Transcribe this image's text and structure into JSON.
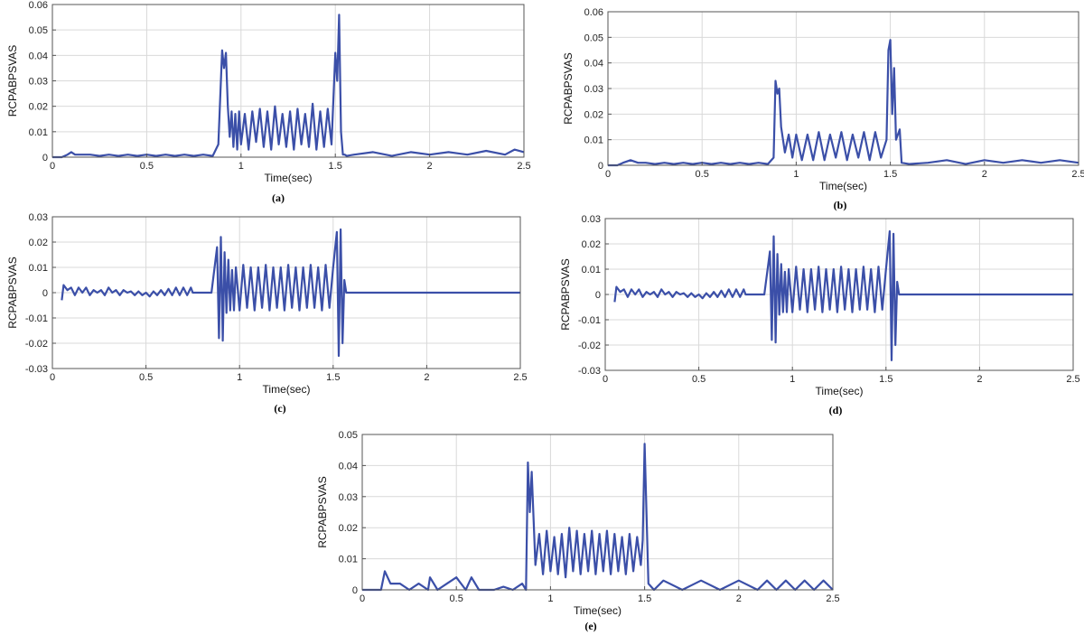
{
  "colors": {
    "line": "#3b4fa8",
    "grid": "#d9d9d9",
    "axis": "#555555"
  },
  "chart_data": [
    {
      "type": "line",
      "caption": "(a)",
      "xlabel": "Time(sec)",
      "ylabel": "RCPABPSVAS",
      "xlim": [
        0,
        2.5
      ],
      "ylim": [
        0,
        0.06
      ],
      "xticks": [
        0,
        0.5,
        1,
        1.5,
        2,
        2.5
      ],
      "xtick_labels": [
        "0",
        "0.5",
        "1",
        "1.5",
        "2",
        "2.5"
      ],
      "yticks": [
        0,
        0.01,
        0.02,
        0.03,
        0.04,
        0.05,
        0.06
      ],
      "ytick_labels": [
        "0",
        "0.01",
        "0.02",
        "0.03",
        "0.04",
        "0.05",
        "0.06"
      ],
      "grid": true,
      "series": [
        {
          "x": [
            0,
            0.05,
            0.08,
            0.1,
            0.12,
            0.15,
            0.2,
            0.25,
            0.3,
            0.35,
            0.4,
            0.45,
            0.5,
            0.55,
            0.6,
            0.65,
            0.7,
            0.75,
            0.8,
            0.85,
            0.88,
            0.9,
            0.91,
            0.92,
            0.93,
            0.94,
            0.95,
            0.96,
            0.97,
            0.98,
            0.99,
            1.0,
            1.02,
            1.04,
            1.06,
            1.08,
            1.1,
            1.12,
            1.14,
            1.16,
            1.18,
            1.2,
            1.22,
            1.24,
            1.26,
            1.28,
            1.3,
            1.32,
            1.34,
            1.36,
            1.38,
            1.4,
            1.42,
            1.44,
            1.46,
            1.48,
            1.5,
            1.51,
            1.52,
            1.53,
            1.54,
            1.55,
            1.56,
            1.6,
            1.7,
            1.8,
            1.9,
            2.0,
            2.1,
            2.2,
            2.3,
            2.4,
            2.45,
            2.5
          ],
          "y": [
            0,
            0,
            0.001,
            0.002,
            0.001,
            0.001,
            0.001,
            0.0005,
            0.001,
            0.0005,
            0.001,
            0.0005,
            0.001,
            0.0005,
            0.001,
            0.0005,
            0.001,
            0.0005,
            0.001,
            0.0005,
            0.005,
            0.042,
            0.035,
            0.041,
            0.02,
            0.008,
            0.018,
            0.004,
            0.017,
            0.003,
            0.018,
            0.005,
            0.017,
            0.003,
            0.018,
            0.006,
            0.019,
            0.004,
            0.018,
            0.003,
            0.02,
            0.005,
            0.017,
            0.004,
            0.018,
            0.003,
            0.019,
            0.005,
            0.017,
            0.004,
            0.021,
            0.003,
            0.018,
            0.004,
            0.019,
            0.005,
            0.041,
            0.03,
            0.056,
            0.01,
            0.001,
            0.001,
            0.0005,
            0.001,
            0.002,
            0.0005,
            0.002,
            0.001,
            0.002,
            0.001,
            0.0025,
            0.001,
            0.003,
            0.002
          ]
        }
      ]
    },
    {
      "type": "line",
      "caption": "(b)",
      "xlabel": "Time(sec)",
      "ylabel": "RCPABPSVAS",
      "xlim": [
        0,
        2.5
      ],
      "ylim": [
        0,
        0.06
      ],
      "xticks": [
        0,
        0.5,
        1,
        1.5,
        2,
        2.5
      ],
      "xtick_labels": [
        "0",
        "0.5",
        "1",
        "1.5",
        "2",
        "2.5"
      ],
      "yticks": [
        0,
        0.01,
        0.02,
        0.03,
        0.04,
        0.05,
        0.06
      ],
      "ytick_labels": [
        "0",
        "0.01",
        "0.02",
        "0.03",
        "0.04",
        "0.05",
        "0.06"
      ],
      "grid": true,
      "series": [
        {
          "x": [
            0,
            0.05,
            0.08,
            0.12,
            0.16,
            0.2,
            0.25,
            0.3,
            0.35,
            0.4,
            0.45,
            0.5,
            0.55,
            0.6,
            0.65,
            0.7,
            0.75,
            0.8,
            0.85,
            0.88,
            0.89,
            0.9,
            0.91,
            0.92,
            0.94,
            0.96,
            0.98,
            1.0,
            1.03,
            1.06,
            1.09,
            1.12,
            1.15,
            1.18,
            1.21,
            1.24,
            1.27,
            1.3,
            1.33,
            1.36,
            1.39,
            1.42,
            1.45,
            1.48,
            1.49,
            1.5,
            1.51,
            1.52,
            1.53,
            1.55,
            1.56,
            1.6,
            1.7,
            1.8,
            1.9,
            2.0,
            2.1,
            2.2,
            2.3,
            2.4,
            2.5
          ],
          "y": [
            0,
            0,
            0.001,
            0.002,
            0.001,
            0.001,
            0.0005,
            0.001,
            0.0005,
            0.001,
            0.0005,
            0.001,
            0.0005,
            0.001,
            0.0005,
            0.001,
            0.0005,
            0.001,
            0.0005,
            0.003,
            0.033,
            0.028,
            0.03,
            0.015,
            0.005,
            0.012,
            0.003,
            0.012,
            0.002,
            0.012,
            0.002,
            0.013,
            0.002,
            0.012,
            0.003,
            0.013,
            0.002,
            0.012,
            0.003,
            0.013,
            0.002,
            0.013,
            0.003,
            0.01,
            0.045,
            0.049,
            0.02,
            0.038,
            0.01,
            0.014,
            0.001,
            0.0005,
            0.001,
            0.002,
            0.0005,
            0.002,
            0.001,
            0.002,
            0.001,
            0.002,
            0.001
          ]
        }
      ]
    },
    {
      "type": "line",
      "caption": "(c)",
      "xlabel": "Time(sec)",
      "ylabel": "RCPABPSVAS",
      "xlim": [
        0,
        2.5
      ],
      "ylim": [
        -0.03,
        0.03
      ],
      "xticks": [
        0,
        0.5,
        1,
        1.5,
        2,
        2.5
      ],
      "xtick_labels": [
        "0",
        "0.5",
        "1",
        "1.5",
        "2",
        "2.5"
      ],
      "yticks": [
        -0.03,
        -0.02,
        -0.01,
        0,
        0.01,
        0.02,
        0.03
      ],
      "ytick_labels": [
        "-0.03",
        "-0.02",
        "-0.01",
        "0",
        "0.01",
        "0.02",
        "0.03"
      ],
      "grid": true,
      "series": [
        {
          "x": [
            0.05,
            0.06,
            0.08,
            0.1,
            0.12,
            0.14,
            0.16,
            0.18,
            0.2,
            0.22,
            0.24,
            0.26,
            0.28,
            0.3,
            0.32,
            0.34,
            0.36,
            0.38,
            0.4,
            0.42,
            0.44,
            0.46,
            0.48,
            0.5,
            0.52,
            0.54,
            0.56,
            0.58,
            0.6,
            0.62,
            0.64,
            0.66,
            0.68,
            0.7,
            0.72,
            0.74,
            0.75,
            0.8,
            0.85,
            0.88,
            0.89,
            0.9,
            0.91,
            0.92,
            0.93,
            0.94,
            0.95,
            0.96,
            0.97,
            0.98,
            1.0,
            1.02,
            1.04,
            1.06,
            1.08,
            1.1,
            1.12,
            1.14,
            1.16,
            1.18,
            1.2,
            1.22,
            1.24,
            1.26,
            1.28,
            1.3,
            1.32,
            1.34,
            1.36,
            1.38,
            1.4,
            1.42,
            1.44,
            1.46,
            1.48,
            1.5,
            1.52,
            1.53,
            1.54,
            1.55,
            1.56,
            1.57,
            1.6,
            1.8,
            2.0,
            2.2,
            2.4,
            2.5
          ],
          "y": [
            -0.003,
            0.003,
            0.001,
            0.002,
            -0.001,
            0.002,
            0,
            0.002,
            -0.001,
            0.001,
            0,
            0.001,
            -0.001,
            0.002,
            0,
            0.001,
            -0.001,
            0.001,
            0,
            0.0005,
            -0.001,
            0.0005,
            -0.001,
            0,
            -0.0015,
            0.0005,
            -0.001,
            0.001,
            -0.001,
            0.0015,
            -0.001,
            0.002,
            -0.001,
            0.002,
            -0.001,
            0.002,
            0,
            0,
            0,
            0.018,
            -0.018,
            0.022,
            -0.019,
            0.016,
            -0.008,
            0.013,
            -0.007,
            0.009,
            -0.007,
            0.01,
            -0.007,
            0.011,
            -0.006,
            0.01,
            -0.007,
            0.01,
            -0.006,
            0.011,
            -0.007,
            0.01,
            -0.006,
            0.01,
            -0.007,
            0.011,
            -0.006,
            0.01,
            -0.007,
            0.01,
            -0.006,
            0.011,
            -0.006,
            0.01,
            -0.007,
            0.011,
            -0.006,
            0.01,
            0.024,
            -0.025,
            0.025,
            -0.02,
            0.005,
            0,
            0,
            0,
            0,
            0,
            0,
            0
          ]
        }
      ]
    },
    {
      "type": "line",
      "caption": "(d)",
      "xlabel": "Time(sec)",
      "ylabel": "RCPABPSVAS",
      "xlim": [
        0,
        2.5
      ],
      "ylim": [
        -0.03,
        0.03
      ],
      "xticks": [
        0,
        0.5,
        1,
        1.5,
        2,
        2.5
      ],
      "xtick_labels": [
        "0",
        "0.5",
        "1",
        "1.5",
        "2",
        "2.5"
      ],
      "yticks": [
        -0.03,
        -0.02,
        -0.01,
        0,
        0.01,
        0.02,
        0.03
      ],
      "ytick_labels": [
        "-0.03",
        "-0.02",
        "-0.01",
        "0",
        "0.01",
        "0.02",
        "0.03"
      ],
      "grid": true,
      "series": [
        {
          "x": [
            0.05,
            0.06,
            0.08,
            0.1,
            0.12,
            0.14,
            0.16,
            0.18,
            0.2,
            0.22,
            0.24,
            0.26,
            0.28,
            0.3,
            0.32,
            0.34,
            0.36,
            0.38,
            0.4,
            0.42,
            0.44,
            0.46,
            0.48,
            0.5,
            0.52,
            0.54,
            0.56,
            0.58,
            0.6,
            0.62,
            0.64,
            0.66,
            0.68,
            0.7,
            0.72,
            0.74,
            0.75,
            0.8,
            0.85,
            0.88,
            0.89,
            0.9,
            0.91,
            0.92,
            0.93,
            0.94,
            0.95,
            0.96,
            0.97,
            0.98,
            1.0,
            1.02,
            1.04,
            1.06,
            1.08,
            1.1,
            1.12,
            1.14,
            1.16,
            1.18,
            1.2,
            1.22,
            1.24,
            1.26,
            1.28,
            1.3,
            1.32,
            1.34,
            1.36,
            1.38,
            1.4,
            1.42,
            1.44,
            1.46,
            1.48,
            1.5,
            1.52,
            1.53,
            1.54,
            1.55,
            1.56,
            1.57,
            1.6,
            1.8,
            2.0,
            2.2,
            2.4,
            2.5
          ],
          "y": [
            -0.003,
            0.003,
            0.001,
            0.002,
            -0.001,
            0.002,
            0,
            0.002,
            -0.001,
            0.001,
            0,
            0.001,
            -0.001,
            0.002,
            0,
            0.001,
            -0.001,
            0.001,
            0,
            0.0005,
            -0.001,
            0.0005,
            -0.001,
            0,
            -0.0015,
            0.0005,
            -0.001,
            0.001,
            -0.001,
            0.0015,
            -0.001,
            0.002,
            -0.001,
            0.002,
            -0.001,
            0.002,
            0,
            0,
            0,
            0.017,
            -0.018,
            0.023,
            -0.019,
            0.016,
            -0.008,
            0.012,
            -0.007,
            0.009,
            -0.007,
            0.01,
            -0.007,
            0.011,
            -0.006,
            0.01,
            -0.007,
            0.01,
            -0.006,
            0.011,
            -0.007,
            0.01,
            -0.006,
            0.01,
            -0.007,
            0.011,
            -0.006,
            0.01,
            -0.007,
            0.01,
            -0.006,
            0.011,
            -0.006,
            0.01,
            -0.007,
            0.011,
            -0.006,
            0.01,
            0.025,
            -0.026,
            0.024,
            -0.02,
            0.005,
            0,
            0,
            0,
            0,
            0,
            0,
            0
          ]
        }
      ]
    },
    {
      "type": "line",
      "caption": "(e)",
      "xlabel": "Time(sec)",
      "ylabel": "RCPABPSVAS",
      "xlim": [
        0,
        2.5
      ],
      "ylim": [
        0,
        0.05
      ],
      "xticks": [
        0,
        0.5,
        1,
        1.5,
        2,
        2.5
      ],
      "xtick_labels": [
        "0",
        "0.5",
        "1",
        "1.5",
        "2",
        "2.5"
      ],
      "yticks": [
        0,
        0.01,
        0.02,
        0.03,
        0.04,
        0.05
      ],
      "ytick_labels": [
        "0",
        "0.01",
        "0.02",
        "0.03",
        "0.04",
        "0.05"
      ],
      "grid": true,
      "series": [
        {
          "x": [
            0,
            0.05,
            0.1,
            0.12,
            0.15,
            0.2,
            0.25,
            0.3,
            0.35,
            0.36,
            0.4,
            0.45,
            0.5,
            0.55,
            0.58,
            0.62,
            0.7,
            0.75,
            0.8,
            0.85,
            0.87,
            0.88,
            0.89,
            0.9,
            0.92,
            0.94,
            0.96,
            0.98,
            1.0,
            1.02,
            1.04,
            1.06,
            1.08,
            1.1,
            1.12,
            1.14,
            1.16,
            1.18,
            1.2,
            1.22,
            1.24,
            1.26,
            1.28,
            1.3,
            1.32,
            1.34,
            1.36,
            1.38,
            1.4,
            1.42,
            1.44,
            1.46,
            1.48,
            1.49,
            1.5,
            1.52,
            1.55,
            1.6,
            1.7,
            1.8,
            1.9,
            2.0,
            2.1,
            2.15,
            2.2,
            2.25,
            2.3,
            2.35,
            2.4,
            2.45,
            2.5
          ],
          "y": [
            0,
            0,
            0,
            0.006,
            0.002,
            0.002,
            0,
            0.002,
            0,
            0.004,
            0,
            0.002,
            0.004,
            0,
            0.004,
            0,
            0,
            0.001,
            0,
            0.002,
            0,
            0.041,
            0.025,
            0.038,
            0.008,
            0.018,
            0.005,
            0.019,
            0.006,
            0.017,
            0.005,
            0.018,
            0.004,
            0.02,
            0.006,
            0.019,
            0.005,
            0.018,
            0.006,
            0.019,
            0.005,
            0.018,
            0.006,
            0.019,
            0.005,
            0.018,
            0.006,
            0.017,
            0.005,
            0.018,
            0.006,
            0.017,
            0.008,
            0.016,
            0.047,
            0.002,
            0,
            0.003,
            0,
            0.003,
            0,
            0.003,
            0,
            0.003,
            0,
            0.003,
            0,
            0.003,
            0,
            0.003,
            0
          ]
        }
      ]
    }
  ]
}
